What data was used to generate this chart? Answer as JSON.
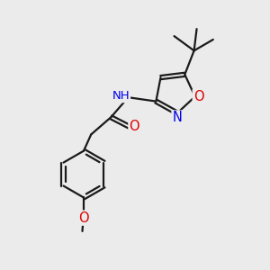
{
  "background_color": "#ebebeb",
  "bond_color": "#1a1a1a",
  "bond_width": 1.6,
  "atom_colors": {
    "N": "#0000ee",
    "O": "#dd0000",
    "C": "#1a1a1a"
  },
  "font_size": 9.5,
  "fig_size": [
    3.0,
    3.0
  ],
  "dpi": 100
}
